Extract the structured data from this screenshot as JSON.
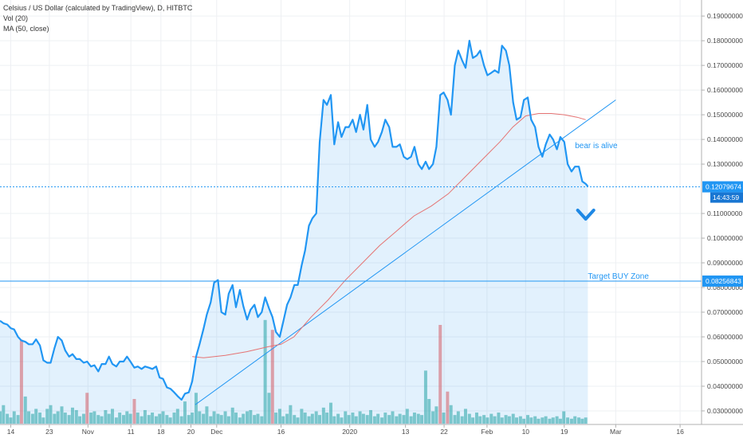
{
  "legend": {
    "title": "Celsius / US Dollar (calculated by TradingView), D, HITBTC",
    "vol": "Vol (20)",
    "ma": "MA (50, close)"
  },
  "chart_data": {
    "type": "area",
    "y_ticks": [
      "0.19000000",
      "0.18000000",
      "0.17000000",
      "0.16000000",
      "0.15000000",
      "0.14000000",
      "0.13000000",
      "0.11000000",
      "0.10000000",
      "0.09000000",
      "0.08000000",
      "0.07000000",
      "0.06000000",
      "0.05000000",
      "0.04000000",
      "0.03000000"
    ],
    "y_tick_values": [
      0.19,
      0.18,
      0.17,
      0.16,
      0.15,
      0.14,
      0.13,
      0.11,
      0.1,
      0.09,
      0.08,
      0.07,
      0.06,
      0.05,
      0.04,
      0.03
    ],
    "ylim": [
      0.0245,
      0.1965
    ],
    "x_ticks": [
      {
        "label": "14",
        "day": 0
      },
      {
        "label": "23",
        "day": 9
      },
      {
        "label": "Nov",
        "day": 18
      },
      {
        "label": "11",
        "day": 28
      },
      {
        "label": "18",
        "day": 35
      },
      {
        "label": "20",
        "day": 42
      },
      {
        "label": "Dec",
        "day": 48
      },
      {
        "label": "16",
        "day": 63
      },
      {
        "label": "2020",
        "day": 79
      },
      {
        "label": "13",
        "day": 92
      },
      {
        "label": "22",
        "day": 101
      },
      {
        "label": "Feb",
        "day": 111
      },
      {
        "label": "10",
        "day": 120
      },
      {
        "label": "19",
        "day": 129
      },
      {
        "label": "Mar",
        "day": 141
      },
      {
        "label": "16",
        "day": 156
      }
    ],
    "xlim": [
      -2.5,
      161
    ],
    "price": [
      [
        -2.5,
        0.0665
      ],
      [
        -1.7,
        0.0655
      ],
      [
        -0.8,
        0.065
      ],
      [
        0.0,
        0.0635
      ],
      [
        0.8,
        0.063
      ],
      [
        1.7,
        0.06
      ],
      [
        2.5,
        0.0585
      ],
      [
        3.4,
        0.058
      ],
      [
        4.2,
        0.057
      ],
      [
        5.1,
        0.057
      ],
      [
        5.9,
        0.059
      ],
      [
        6.8,
        0.0565
      ],
      [
        7.6,
        0.0505
      ],
      [
        8.5,
        0.0495
      ],
      [
        9.3,
        0.0495
      ],
      [
        10.2,
        0.0555
      ],
      [
        11.0,
        0.06
      ],
      [
        11.9,
        0.0585
      ],
      [
        12.7,
        0.0545
      ],
      [
        13.6,
        0.052
      ],
      [
        14.4,
        0.053
      ],
      [
        15.3,
        0.051
      ],
      [
        16.1,
        0.051
      ],
      [
        17.0,
        0.0495
      ],
      [
        17.8,
        0.05
      ],
      [
        18.7,
        0.048
      ],
      [
        19.5,
        0.0485
      ],
      [
        20.4,
        0.046
      ],
      [
        21.2,
        0.049
      ],
      [
        22.1,
        0.049
      ],
      [
        22.9,
        0.052
      ],
      [
        23.7,
        0.049
      ],
      [
        24.6,
        0.048
      ],
      [
        25.4,
        0.05
      ],
      [
        26.3,
        0.05
      ],
      [
        27.1,
        0.052
      ],
      [
        27.9,
        0.05
      ],
      [
        28.8,
        0.0475
      ],
      [
        29.6,
        0.048
      ],
      [
        30.5,
        0.047
      ],
      [
        31.3,
        0.048
      ],
      [
        32.2,
        0.0475
      ],
      [
        33.0,
        0.047
      ],
      [
        33.9,
        0.048
      ],
      [
        34.7,
        0.0435
      ],
      [
        35.5,
        0.043
      ],
      [
        36.4,
        0.0395
      ],
      [
        37.2,
        0.039
      ],
      [
        38.1,
        0.0375
      ],
      [
        38.9,
        0.036
      ],
      [
        39.8,
        0.0345
      ],
      [
        40.6,
        0.037
      ],
      [
        41.5,
        0.0375
      ],
      [
        42.3,
        0.042
      ],
      [
        43.2,
        0.052
      ],
      [
        44.0,
        0.057
      ],
      [
        44.9,
        0.063
      ],
      [
        45.7,
        0.069
      ],
      [
        46.6,
        0.074
      ],
      [
        47.4,
        0.082
      ],
      [
        48.3,
        0.083
      ],
      [
        49.1,
        0.07
      ],
      [
        50.0,
        0.069
      ],
      [
        50.8,
        0.0775
      ],
      [
        51.7,
        0.081
      ],
      [
        52.5,
        0.072
      ],
      [
        53.4,
        0.079
      ],
      [
        54.2,
        0.0725
      ],
      [
        55.1,
        0.067
      ],
      [
        55.9,
        0.071
      ],
      [
        56.8,
        0.073
      ],
      [
        57.6,
        0.068
      ],
      [
        58.5,
        0.07
      ],
      [
        59.3,
        0.076
      ],
      [
        60.2,
        0.0715
      ],
      [
        61.0,
        0.068
      ],
      [
        61.8,
        0.062
      ],
      [
        62.7,
        0.06
      ],
      [
        63.5,
        0.066
      ],
      [
        64.4,
        0.073
      ],
      [
        65.2,
        0.076
      ],
      [
        66.1,
        0.081
      ],
      [
        66.9,
        0.081
      ],
      [
        67.8,
        0.089
      ],
      [
        68.6,
        0.095
      ],
      [
        69.5,
        0.105
      ],
      [
        70.3,
        0.108
      ],
      [
        71.2,
        0.11
      ],
      [
        72.0,
        0.139
      ],
      [
        72.9,
        0.156
      ],
      [
        73.7,
        0.154
      ],
      [
        74.6,
        0.158
      ],
      [
        75.4,
        0.138
      ],
      [
        76.3,
        0.147
      ],
      [
        77.1,
        0.141
      ],
      [
        78.0,
        0.145
      ],
      [
        78.8,
        0.145
      ],
      [
        79.7,
        0.148
      ],
      [
        80.5,
        0.143
      ],
      [
        81.4,
        0.15
      ],
      [
        82.2,
        0.144
      ],
      [
        83.1,
        0.154
      ],
      [
        83.9,
        0.14
      ],
      [
        84.8,
        0.137
      ],
      [
        85.6,
        0.139
      ],
      [
        86.5,
        0.143
      ],
      [
        87.3,
        0.148
      ],
      [
        88.2,
        0.145
      ],
      [
        89.0,
        0.137
      ],
      [
        89.9,
        0.137
      ],
      [
        90.7,
        0.138
      ],
      [
        91.6,
        0.133
      ],
      [
        92.4,
        0.132
      ],
      [
        93.3,
        0.133
      ],
      [
        94.1,
        0.137
      ],
      [
        95.0,
        0.13
      ],
      [
        95.8,
        0.128
      ],
      [
        96.7,
        0.131
      ],
      [
        97.5,
        0.128
      ],
      [
        98.4,
        0.13
      ],
      [
        99.2,
        0.137
      ],
      [
        100.1,
        0.158
      ],
      [
        100.9,
        0.159
      ],
      [
        101.8,
        0.156
      ],
      [
        102.6,
        0.15
      ],
      [
        103.5,
        0.17
      ],
      [
        104.3,
        0.176
      ],
      [
        105.2,
        0.172
      ],
      [
        106.0,
        0.169
      ],
      [
        106.9,
        0.18
      ],
      [
        107.7,
        0.173
      ],
      [
        108.6,
        0.174
      ],
      [
        109.4,
        0.176
      ],
      [
        110.3,
        0.17
      ],
      [
        111.1,
        0.166
      ],
      [
        112.0,
        0.167
      ],
      [
        112.8,
        0.168
      ],
      [
        113.7,
        0.167
      ],
      [
        114.5,
        0.178
      ],
      [
        115.4,
        0.176
      ],
      [
        116.2,
        0.17
      ],
      [
        117.1,
        0.155
      ],
      [
        117.9,
        0.148
      ],
      [
        118.8,
        0.149
      ],
      [
        119.6,
        0.156
      ],
      [
        120.5,
        0.157
      ],
      [
        121.3,
        0.148
      ],
      [
        122.2,
        0.145
      ],
      [
        123.0,
        0.137
      ],
      [
        123.9,
        0.133
      ],
      [
        124.7,
        0.138
      ],
      [
        125.6,
        0.142
      ],
      [
        126.4,
        0.14
      ],
      [
        127.3,
        0.136
      ],
      [
        128.1,
        0.141
      ],
      [
        129.0,
        0.139
      ],
      [
        129.8,
        0.13
      ],
      [
        130.7,
        0.127
      ],
      [
        131.5,
        0.129
      ],
      [
        132.4,
        0.129
      ],
      [
        133.2,
        0.123
      ],
      [
        134.0,
        0.122
      ],
      [
        134.5,
        0.121
      ]
    ],
    "ma": [
      [
        42.3,
        0.052
      ],
      [
        45.0,
        0.0515
      ],
      [
        50.0,
        0.0525
      ],
      [
        55.0,
        0.054
      ],
      [
        60.0,
        0.056
      ],
      [
        63.0,
        0.057
      ],
      [
        66.0,
        0.06
      ],
      [
        70.0,
        0.068
      ],
      [
        74.0,
        0.075
      ],
      [
        78.0,
        0.083
      ],
      [
        82.0,
        0.09
      ],
      [
        86.0,
        0.097
      ],
      [
        90.0,
        0.103
      ],
      [
        94.0,
        0.109
      ],
      [
        98.0,
        0.113
      ],
      [
        102.0,
        0.118
      ],
      [
        106.0,
        0.125
      ],
      [
        110.0,
        0.132
      ],
      [
        114.0,
        0.139
      ],
      [
        117.0,
        0.145
      ],
      [
        120.0,
        0.1495
      ],
      [
        123.0,
        0.1505
      ],
      [
        126.0,
        0.1505
      ],
      [
        129.0,
        0.15
      ],
      [
        132.0,
        0.149
      ],
      [
        134.0,
        0.148
      ]
    ],
    "trendline": [
      [
        43.0,
        0.0325
      ],
      [
        141.0,
        0.156
      ]
    ],
    "volume": [
      [
        -2.5,
        1.0
      ],
      [
        -1.7,
        1.5
      ],
      [
        -0.8,
        0.8
      ],
      [
        0.0,
        0.5
      ],
      [
        0.8,
        1.0
      ],
      [
        1.7,
        0.7
      ],
      [
        2.5,
        6.8,
        "down"
      ],
      [
        3.4,
        2.2
      ],
      [
        4.2,
        1.0
      ],
      [
        5.1,
        0.8
      ],
      [
        5.9,
        1.2
      ],
      [
        6.8,
        0.9
      ],
      [
        7.6,
        0.5
      ],
      [
        8.5,
        1.2
      ],
      [
        9.3,
        1.5
      ],
      [
        10.2,
        0.8
      ],
      [
        11.0,
        1.0
      ],
      [
        11.9,
        1.4
      ],
      [
        12.7,
        0.9
      ],
      [
        13.6,
        0.7
      ],
      [
        14.4,
        1.3
      ],
      [
        15.3,
        1.1
      ],
      [
        16.1,
        0.6
      ],
      [
        17.0,
        0.8
      ],
      [
        17.8,
        2.5,
        "down"
      ],
      [
        18.7,
        0.9
      ],
      [
        19.5,
        1.0
      ],
      [
        20.4,
        0.7
      ],
      [
        21.2,
        0.6
      ],
      [
        22.1,
        1.1
      ],
      [
        22.9,
        0.8
      ],
      [
        23.7,
        1.2
      ],
      [
        24.6,
        0.5
      ],
      [
        25.4,
        0.9
      ],
      [
        26.3,
        0.7
      ],
      [
        27.1,
        1.0
      ],
      [
        27.9,
        0.8
      ],
      [
        28.8,
        2.0,
        "down"
      ],
      [
        29.6,
        0.9
      ],
      [
        30.5,
        0.6
      ],
      [
        31.3,
        1.1
      ],
      [
        32.2,
        0.7
      ],
      [
        33.0,
        0.9
      ],
      [
        33.9,
        0.6
      ],
      [
        34.7,
        0.8
      ],
      [
        35.5,
        1.0
      ],
      [
        36.4,
        0.7
      ],
      [
        37.2,
        0.5
      ],
      [
        38.1,
        0.9
      ],
      [
        38.9,
        1.2
      ],
      [
        39.8,
        0.6
      ],
      [
        40.6,
        1.8
      ],
      [
        41.5,
        0.7
      ],
      [
        42.3,
        0.9
      ],
      [
        43.2,
        2.5
      ],
      [
        44.0,
        1.0
      ],
      [
        44.9,
        0.8
      ],
      [
        45.7,
        1.4
      ],
      [
        46.6,
        0.6
      ],
      [
        47.4,
        1.0
      ],
      [
        48.3,
        0.8
      ],
      [
        49.1,
        0.7
      ],
      [
        50.0,
        1.0
      ],
      [
        50.8,
        0.6
      ],
      [
        51.7,
        1.3
      ],
      [
        52.5,
        0.9
      ],
      [
        53.4,
        0.5
      ],
      [
        54.2,
        0.8
      ],
      [
        55.1,
        1.0
      ],
      [
        55.9,
        1.1
      ],
      [
        56.8,
        0.7
      ],
      [
        57.6,
        0.8
      ],
      [
        58.5,
        0.6
      ],
      [
        59.3,
        8.4
      ],
      [
        60.2,
        2.5
      ],
      [
        61.0,
        7.6,
        "down"
      ],
      [
        61.8,
        0.9
      ],
      [
        62.7,
        1.2
      ],
      [
        63.5,
        0.6
      ],
      [
        64.4,
        0.8
      ],
      [
        65.2,
        1.5
      ],
      [
        66.1,
        0.7
      ],
      [
        66.9,
        0.5
      ],
      [
        67.8,
        1.2
      ],
      [
        68.6,
        0.9
      ],
      [
        69.5,
        0.6
      ],
      [
        70.3,
        0.8
      ],
      [
        71.2,
        1.0
      ],
      [
        72.0,
        0.7
      ],
      [
        72.9,
        1.3
      ],
      [
        73.7,
        0.9
      ],
      [
        74.6,
        1.7
      ],
      [
        75.4,
        0.6
      ],
      [
        76.3,
        0.8
      ],
      [
        77.1,
        0.5
      ],
      [
        78.0,
        1.0
      ],
      [
        78.8,
        0.7
      ],
      [
        79.7,
        0.9
      ],
      [
        80.5,
        0.6
      ],
      [
        81.4,
        1.0
      ],
      [
        82.2,
        0.8
      ],
      [
        83.1,
        0.7
      ],
      [
        83.9,
        1.1
      ],
      [
        84.8,
        0.6
      ],
      [
        85.6,
        0.8
      ],
      [
        86.5,
        0.5
      ],
      [
        87.3,
        0.9
      ],
      [
        88.2,
        0.7
      ],
      [
        89.0,
        1.0
      ],
      [
        89.9,
        0.6
      ],
      [
        90.7,
        0.8
      ],
      [
        91.6,
        0.7
      ],
      [
        92.4,
        1.2
      ],
      [
        93.3,
        0.6
      ],
      [
        94.1,
        0.9
      ],
      [
        95.0,
        0.8
      ],
      [
        95.8,
        0.7
      ],
      [
        96.7,
        4.3
      ],
      [
        97.5,
        2.0
      ],
      [
        98.4,
        1.0
      ],
      [
        99.2,
        1.4
      ],
      [
        100.1,
        8.0,
        "down"
      ],
      [
        100.9,
        0.9
      ],
      [
        101.8,
        2.6,
        "down"
      ],
      [
        102.6,
        1.5
      ],
      [
        103.5,
        0.7
      ],
      [
        104.3,
        1.0
      ],
      [
        105.2,
        0.6
      ],
      [
        106.0,
        1.2
      ],
      [
        106.9,
        0.8
      ],
      [
        107.7,
        0.5
      ],
      [
        108.6,
        0.9
      ],
      [
        109.4,
        0.6
      ],
      [
        110.3,
        0.7
      ],
      [
        111.1,
        0.5
      ],
      [
        112.0,
        0.8
      ],
      [
        112.8,
        0.6
      ],
      [
        113.7,
        0.9
      ],
      [
        114.5,
        0.5
      ],
      [
        115.4,
        0.7
      ],
      [
        116.2,
        0.6
      ],
      [
        117.1,
        0.8
      ],
      [
        117.9,
        0.5
      ],
      [
        118.8,
        0.6
      ],
      [
        119.6,
        0.4
      ],
      [
        120.5,
        0.7
      ],
      [
        121.3,
        0.5
      ],
      [
        122.2,
        0.6
      ],
      [
        123.0,
        0.4
      ],
      [
        123.9,
        0.5
      ],
      [
        124.7,
        0.6
      ],
      [
        125.6,
        0.4
      ],
      [
        126.4,
        0.5
      ],
      [
        127.3,
        0.6
      ],
      [
        128.1,
        0.4
      ],
      [
        128.9,
        1.0
      ],
      [
        129.8,
        0.5
      ],
      [
        130.7,
        0.4
      ],
      [
        131.5,
        0.6
      ],
      [
        132.4,
        0.5
      ],
      [
        133.2,
        0.4
      ],
      [
        134.0,
        0.5
      ]
    ],
    "price_tag": {
      "label": "0.12079674",
      "value": 0.1208,
      "timer": "14:43:59"
    },
    "target_tag": {
      "label": "0.08256843",
      "value": 0.0826
    },
    "annotations": {
      "bear": {
        "text": "bear is alive",
        "day": 131.5,
        "value": 0.1365
      },
      "target": {
        "text": "Target BUY Zone",
        "day": 134.5,
        "value": 0.0835
      },
      "arrow": {
        "day": 134.0,
        "value": 0.1097
      }
    },
    "colors": {
      "price_line": "#2196f3",
      "area_fill": "#2196f3",
      "ma_line": "#e57373",
      "vol_up": "#26a69a",
      "vol_down": "#ef5350",
      "tag_bg": "#2196f3",
      "timer_bg": "#1976d2"
    }
  }
}
